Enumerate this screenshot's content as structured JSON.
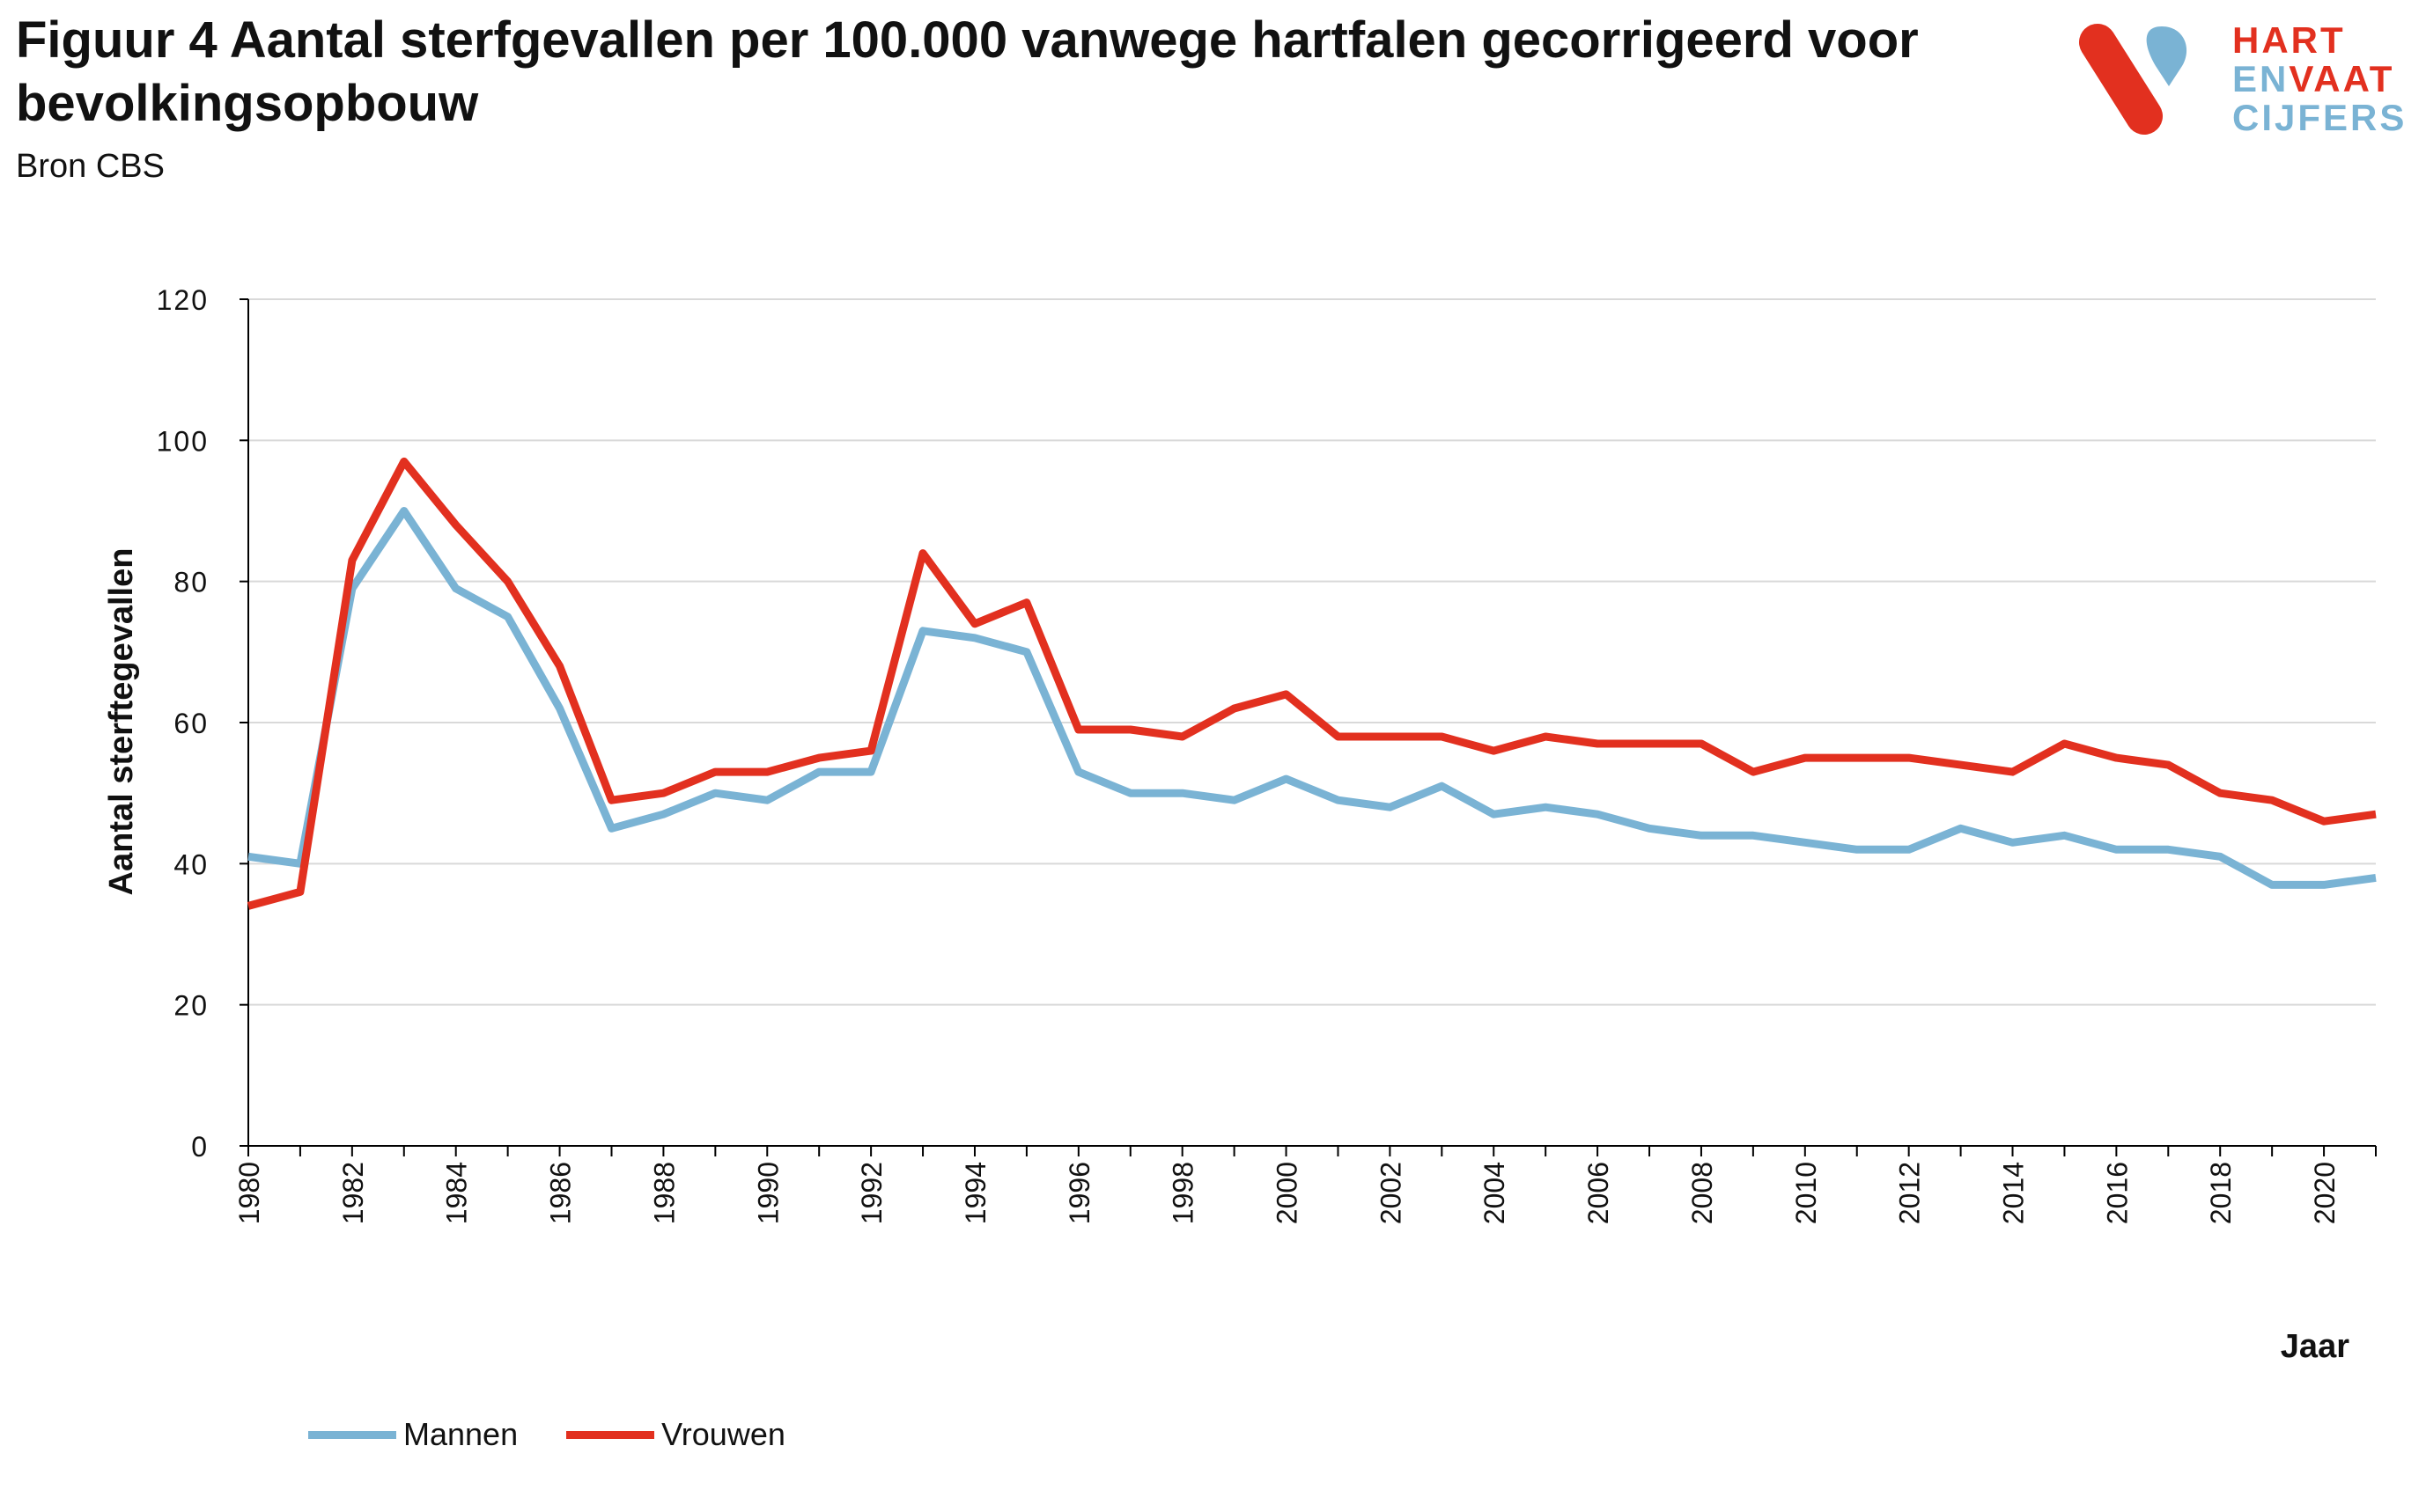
{
  "header": {
    "title": "Figuur 4 Aantal sterfgevallen per 100.000 vanwege hartfalen gecorrigeerd voor bevolkingsopbouw",
    "subtitle": "Bron CBS"
  },
  "logo": {
    "line1a": "HART",
    "line2a": "EN",
    "line2b": "VAAT",
    "line3a": "CIJFERS",
    "colors": {
      "red": "#e2301f",
      "blue": "#7ab3d4"
    }
  },
  "colors": {
    "mannen": "#7ab3d4",
    "vrouwen": "#e2301f",
    "grid": "#d9d9d9",
    "axis": "#000000"
  },
  "chart_data": {
    "type": "line",
    "title": "Figuur 4 Aantal sterfgevallen per 100.000 vanwege hartfalen gecorrigeerd voor bevolkingsopbouw",
    "subtitle": "Bron CBS",
    "xlabel": "Jaar",
    "ylabel": "Aantal sterftegevallen",
    "ylim": [
      0,
      120
    ],
    "yticks": [
      0,
      20,
      40,
      60,
      80,
      100,
      120
    ],
    "xlim": [
      1980,
      2021
    ],
    "xticks": [
      1980,
      1982,
      1984,
      1986,
      1988,
      1990,
      1992,
      1994,
      1996,
      1998,
      2000,
      2002,
      2004,
      2006,
      2008,
      2010,
      2012,
      2014,
      2016,
      2018,
      2020
    ],
    "grid": "horizontal",
    "legend": "bottom-left",
    "x": [
      1980,
      1981,
      1982,
      1983,
      1984,
      1985,
      1986,
      1987,
      1988,
      1989,
      1990,
      1991,
      1992,
      1993,
      1994,
      1995,
      1996,
      1997,
      1998,
      1999,
      2000,
      2001,
      2002,
      2003,
      2004,
      2005,
      2006,
      2007,
      2008,
      2009,
      2010,
      2011,
      2012,
      2013,
      2014,
      2015,
      2016,
      2017,
      2018,
      2019,
      2020,
      2021
    ],
    "series": [
      {
        "name": "Mannen",
        "color": "#7ab3d4",
        "values": [
          41,
          40,
          79,
          90,
          79,
          75,
          62,
          45,
          47,
          50,
          49,
          53,
          53,
          73,
          72,
          70,
          53,
          50,
          50,
          49,
          52,
          49,
          48,
          51,
          47,
          48,
          47,
          45,
          44,
          44,
          43,
          42,
          42,
          45,
          43,
          44,
          42,
          42,
          41,
          37,
          37,
          38
        ]
      },
      {
        "name": "Vrouwen",
        "color": "#e2301f",
        "values": [
          34,
          36,
          83,
          97,
          88,
          80,
          68,
          49,
          50,
          53,
          53,
          55,
          56,
          84,
          74,
          77,
          59,
          59,
          58,
          62,
          64,
          58,
          58,
          58,
          56,
          58,
          57,
          57,
          57,
          53,
          55,
          55,
          55,
          54,
          53,
          57,
          55,
          54,
          50,
          49,
          46,
          47
        ]
      }
    ]
  }
}
